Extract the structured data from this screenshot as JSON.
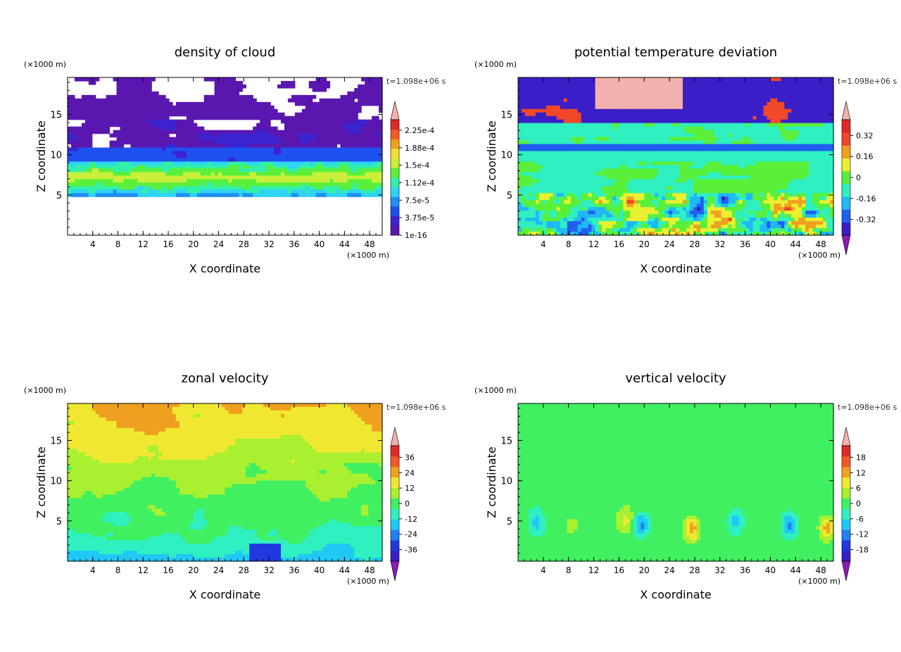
{
  "chart_data": [
    {
      "type": "heatmap",
      "title": "density of cloud",
      "xlabel": "X coordinate",
      "ylabel": "Z coordinate",
      "x_unit": "(×1000 m)",
      "y_unit": "(×1000 m)",
      "time_label": "t=1.098e+06 s",
      "xlim": [
        0,
        50
      ],
      "ylim": [
        0,
        19.6
      ],
      "xticks": [
        4,
        8,
        12,
        16,
        20,
        24,
        28,
        32,
        36,
        40,
        44,
        48
      ],
      "yticks": [
        5,
        10,
        15
      ],
      "colorbar": {
        "levels": [
          "1e-16",
          "3.75e-5",
          "7.5e-5",
          "1.12e-4",
          "1.5e-4",
          "1.88e-4",
          "2.25e-4"
        ],
        "colors": [
          "#5a17b0",
          "#3b23cf",
          "#1f50f0",
          "#1f8ff5",
          "#2fd3f5",
          "#32f0a8",
          "#5af03a",
          "#c8f03a",
          "#f0e030",
          "#f0a020",
          "#f05a28",
          "#e02828"
        ],
        "extend_max": true,
        "extend_min": false,
        "over_color": "#f3b0ac",
        "under_color": "#8c1ab5"
      }
    },
    {
      "type": "heatmap",
      "title": "potential temperature deviation",
      "xlabel": "X coordinate",
      "ylabel": "Z coordinate",
      "x_unit": "(×1000 m)",
      "y_unit": "(×1000 m)",
      "time_label": "t=1.098e+06 s",
      "xlim": [
        0,
        50
      ],
      "ylim": [
        0,
        19.6
      ],
      "xticks": [
        4,
        8,
        12,
        16,
        20,
        24,
        28,
        32,
        36,
        40,
        44,
        48
      ],
      "yticks": [
        5,
        10,
        15
      ],
      "colorbar": {
        "levels": [
          "-0.32",
          "-0.16",
          "0",
          "0.16",
          "0.32"
        ],
        "colors": [
          "#3a1ec8",
          "#2060f0",
          "#20b8f5",
          "#2ff0c0",
          "#5af03a",
          "#e8f030",
          "#f0a020",
          "#f04828",
          "#e02828"
        ],
        "extend_max": true,
        "extend_min": true,
        "over_color": "#f3b0ac",
        "under_color": "#8c1ab5"
      }
    },
    {
      "type": "heatmap",
      "title": "zonal velocity",
      "xlabel": "X coordinate",
      "ylabel": "Z coordinate",
      "x_unit": "(×1000 m)",
      "y_unit": "(×1000 m)",
      "time_label": "t=1.098e+06 s",
      "xlim": [
        0,
        50
      ],
      "ylim": [
        0,
        19.6
      ],
      "xticks": [
        4,
        8,
        12,
        16,
        20,
        24,
        28,
        32,
        36,
        40,
        44,
        48
      ],
      "yticks": [
        5,
        10,
        15
      ],
      "colorbar": {
        "levels": [
          "-36",
          "-24",
          "-12",
          "0",
          "12",
          "24",
          "36"
        ],
        "colors": [
          "#3a1ec8",
          "#2038e0",
          "#2080f0",
          "#20c8f5",
          "#2ff0c0",
          "#40f060",
          "#a8f030",
          "#f0e830",
          "#f0a020",
          "#f05a28",
          "#e02828"
        ],
        "extend_max": true,
        "extend_min": true,
        "over_color": "#f3b0ac",
        "under_color": "#8c1ab5"
      }
    },
    {
      "type": "heatmap",
      "title": "vertical velocity",
      "xlabel": "X coordinate",
      "ylabel": "Z coordinate",
      "x_unit": "(×1000 m)",
      "y_unit": "(×1000 m)",
      "time_label": "t=1.098e+06 s",
      "xlim": [
        0,
        50
      ],
      "ylim": [
        0,
        19.6
      ],
      "xticks": [
        4,
        8,
        12,
        16,
        20,
        24,
        28,
        32,
        36,
        40,
        44,
        48
      ],
      "yticks": [
        5,
        10,
        15
      ],
      "colorbar": {
        "levels": [
          "-18",
          "-12",
          "-6",
          "0",
          "6",
          "12",
          "18"
        ],
        "colors": [
          "#3a1ec8",
          "#2038e0",
          "#2080f0",
          "#20c8f5",
          "#2ff0c0",
          "#40f060",
          "#a8f030",
          "#f0e830",
          "#f0a020",
          "#f05a28",
          "#e02828"
        ],
        "extend_max": true,
        "extend_min": true,
        "over_color": "#f3b0ac",
        "under_color": "#8c1ab5"
      }
    }
  ]
}
